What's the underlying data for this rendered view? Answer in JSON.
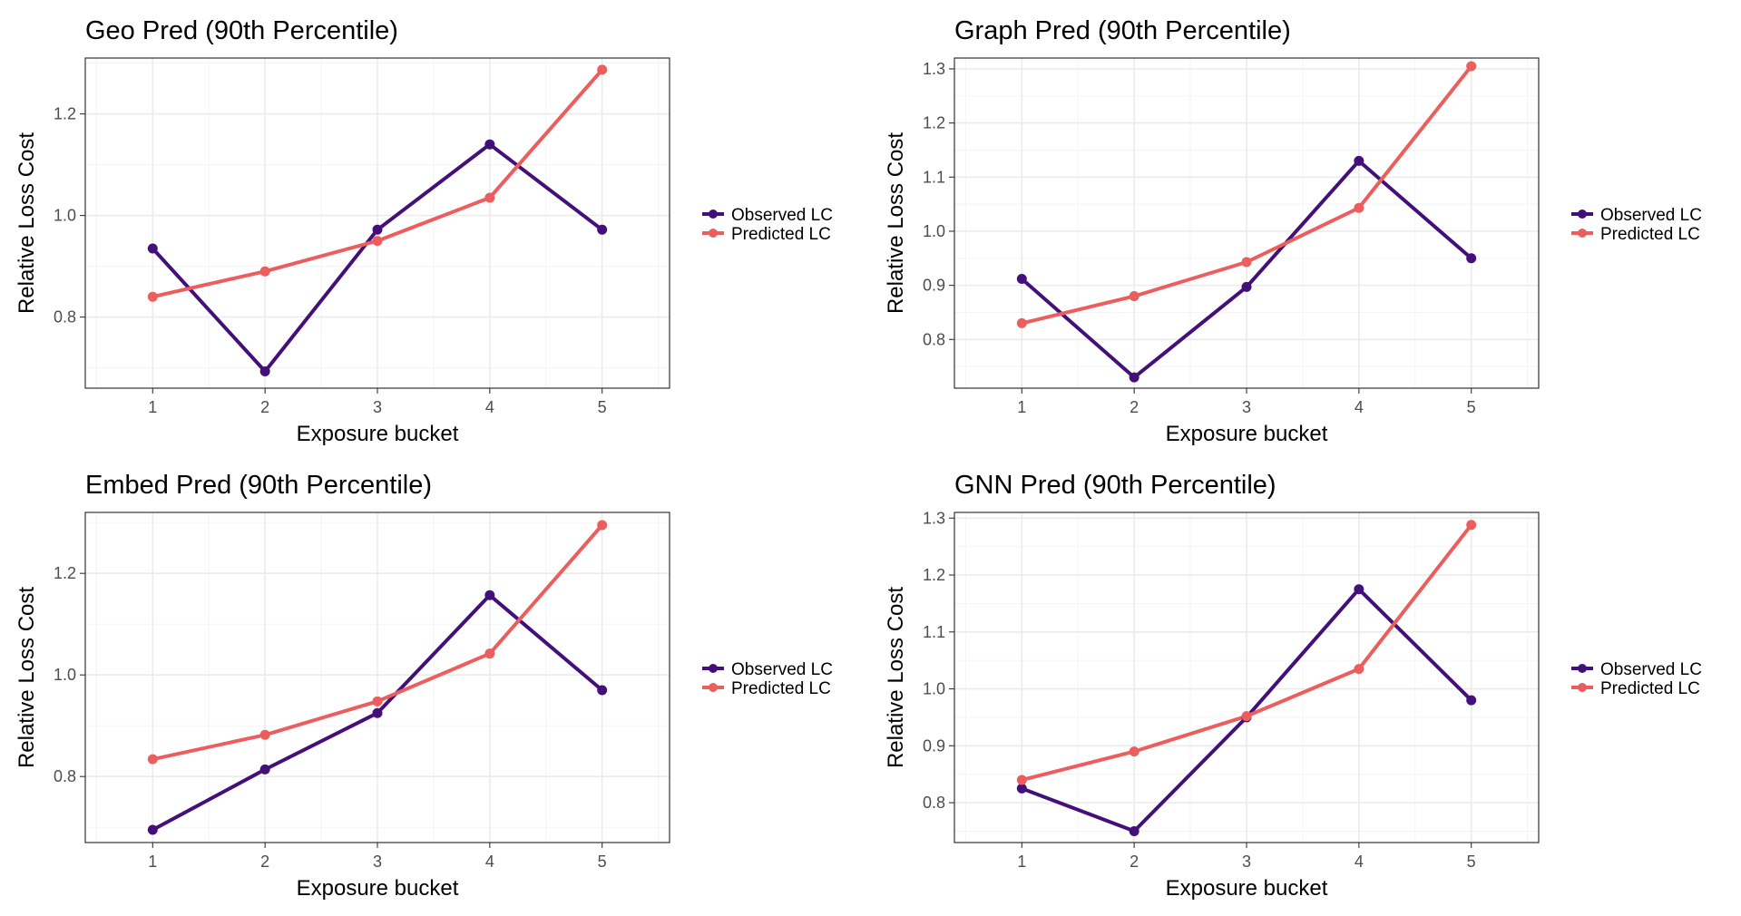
{
  "colors": {
    "observed": "#43107a",
    "predicted": "#ec5e5e"
  },
  "legend": {
    "entries": [
      "Observed LC",
      "Predicted LC"
    ]
  },
  "chart_data": [
    {
      "type": "line",
      "title": "Geo Pred (90th Percentile)",
      "xlabel": "Exposure bucket",
      "ylabel": "Relative Loss Cost",
      "x": [
        1,
        2,
        3,
        4,
        5
      ],
      "xticks": [
        1,
        2,
        3,
        4,
        5
      ],
      "xlim": [
        0.4,
        5.6
      ],
      "ylim": [
        0.66,
        1.31
      ],
      "yticks": [
        0.8,
        1.0,
        1.2
      ],
      "ytick_labels": [
        "0.8",
        "1.0",
        "1.2"
      ],
      "yminor": [
        0.7,
        0.9,
        1.1,
        1.3
      ],
      "grid": true,
      "legend_position": "right",
      "series": [
        {
          "name": "Observed LC",
          "values": [
            0.935,
            0.693,
            0.972,
            1.14,
            0.972
          ]
        },
        {
          "name": "Predicted LC",
          "values": [
            0.84,
            0.89,
            0.95,
            1.035,
            1.287
          ]
        }
      ]
    },
    {
      "type": "line",
      "title": "Graph Pred (90th Percentile)",
      "xlabel": "Exposure bucket",
      "ylabel": "Relative Loss Cost",
      "x": [
        1,
        2,
        3,
        4,
        5
      ],
      "xticks": [
        1,
        2,
        3,
        4,
        5
      ],
      "xlim": [
        0.4,
        5.6
      ],
      "ylim": [
        0.71,
        1.32
      ],
      "yticks": [
        0.8,
        0.9,
        1.0,
        1.1,
        1.2,
        1.3
      ],
      "ytick_labels": [
        "0.8",
        "0.9",
        "1.0",
        "1.1",
        "1.2",
        "1.3"
      ],
      "yminor": [
        0.75,
        0.85,
        0.95,
        1.05,
        1.15,
        1.25
      ],
      "grid": true,
      "legend_position": "right",
      "series": [
        {
          "name": "Observed LC",
          "values": [
            0.912,
            0.73,
            0.897,
            1.13,
            0.95
          ]
        },
        {
          "name": "Predicted LC",
          "values": [
            0.83,
            0.88,
            0.943,
            1.043,
            1.305
          ]
        }
      ]
    },
    {
      "type": "line",
      "title": "Embed Pred (90th Percentile)",
      "xlabel": "Exposure bucket",
      "ylabel": "Relative Loss Cost",
      "x": [
        1,
        2,
        3,
        4,
        5
      ],
      "xticks": [
        1,
        2,
        3,
        4,
        5
      ],
      "xlim": [
        0.4,
        5.6
      ],
      "ylim": [
        0.67,
        1.32
      ],
      "yticks": [
        0.8,
        1.0,
        1.2
      ],
      "ytick_labels": [
        "0.8",
        "1.0",
        "1.2"
      ],
      "yminor": [
        0.7,
        0.9,
        1.1,
        1.3
      ],
      "grid": true,
      "legend_position": "right",
      "series": [
        {
          "name": "Observed LC",
          "values": [
            0.695,
            0.814,
            0.925,
            1.157,
            0.97
          ]
        },
        {
          "name": "Predicted LC",
          "values": [
            0.834,
            0.882,
            0.948,
            1.042,
            1.295
          ]
        }
      ]
    },
    {
      "type": "line",
      "title": "GNN Pred (90th Percentile)",
      "xlabel": "Exposure bucket",
      "ylabel": "Relative Loss Cost",
      "x": [
        1,
        2,
        3,
        4,
        5
      ],
      "xticks": [
        1,
        2,
        3,
        4,
        5
      ],
      "xlim": [
        0.4,
        5.6
      ],
      "ylim": [
        0.73,
        1.31
      ],
      "yticks": [
        0.8,
        0.9,
        1.0,
        1.1,
        1.2,
        1.3
      ],
      "ytick_labels": [
        "0.8",
        "0.9",
        "1.0",
        "1.1",
        "1.2",
        "1.3"
      ],
      "yminor": [
        0.75,
        0.85,
        0.95,
        1.05,
        1.15,
        1.25
      ],
      "grid": true,
      "legend_position": "right",
      "series": [
        {
          "name": "Observed LC",
          "values": [
            0.825,
            0.75,
            0.95,
            1.175,
            0.98
          ]
        },
        {
          "name": "Predicted LC",
          "values": [
            0.84,
            0.89,
            0.952,
            1.035,
            1.288
          ]
        }
      ]
    }
  ]
}
